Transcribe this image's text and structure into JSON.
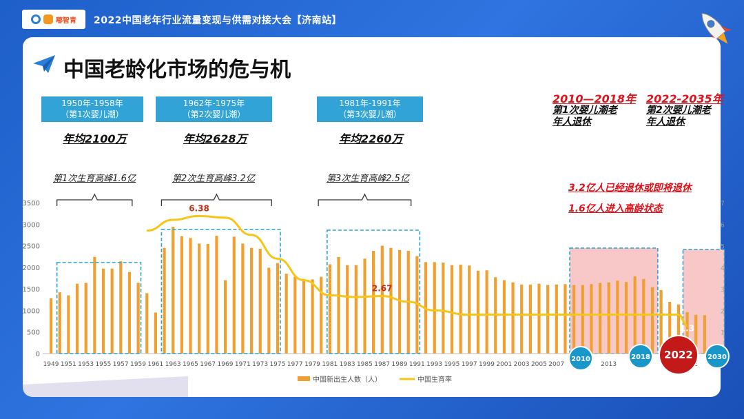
{
  "header": {
    "logo_text": "嘟智青",
    "conference_title": "2022中国老年行业流量变现与供需对接大会【济南站】"
  },
  "page_title": "中国老龄化市场的危与机",
  "eras": [
    {
      "range": "1950年-1958年",
      "label": "（第1次婴儿潮）",
      "avg": "年均2100万",
      "peak": "第1次生育高峰1.6亿"
    },
    {
      "range": "1962年-1975年",
      "label": "（第2次婴儿潮）",
      "avg": "年均2628万",
      "peak": "第2次生育高峰3.2亿"
    },
    {
      "range": "1981年-1991年",
      "label": "（第3次婴儿潮）",
      "avg": "年均2260万",
      "peak": "第3次生育高峰2.5亿"
    }
  ],
  "retirement": [
    {
      "years": "2010—2018年",
      "line1": "第1次婴儿潮老",
      "line2": "年人退休"
    },
    {
      "years": "2022-2035年",
      "line1": "第2次婴儿潮老",
      "line2": "年人退休"
    }
  ],
  "notes": [
    "3.2亿人已经退休或即将退休",
    "1.6亿人进入高龄状态"
  ],
  "year_badges": [
    "2010",
    "2018",
    "2022",
    "2030"
  ],
  "colors": {
    "bar": "#f0a030",
    "line": "#f7c518",
    "box": "#2a9fd0",
    "shade": "#f8c8c8",
    "red": "#e0121b",
    "badge": "#1a97c9",
    "badge_main": "#c31919"
  },
  "chart_data": {
    "type": "bar",
    "x": [
      1949,
      1950,
      1951,
      1952,
      1953,
      1954,
      1955,
      1956,
      1957,
      1958,
      1959,
      1960,
      1961,
      1962,
      1963,
      1964,
      1965,
      1966,
      1967,
      1968,
      1969,
      1970,
      1971,
      1972,
      1973,
      1974,
      1975,
      1976,
      1977,
      1978,
      1979,
      1980,
      1981,
      1982,
      1983,
      1984,
      1985,
      1986,
      1987,
      1988,
      1989,
      1990,
      1991,
      1992,
      1993,
      1994,
      1995,
      1996,
      1997,
      1998,
      1999,
      2000,
      2001,
      2002,
      2003,
      2004,
      2005,
      2006,
      2007,
      2008,
      2009,
      2010,
      2011,
      2012,
      2013,
      2014,
      2015,
      2016,
      2017,
      2018,
      2019,
      2020,
      2021,
      2022,
      2023,
      2024
    ],
    "x_tick_labels": [
      "1949",
      "1951",
      "1953",
      "1955",
      "1957",
      "1959",
      "1961",
      "1963",
      "1965",
      "1967",
      "1969",
      "1971",
      "1973",
      "1975",
      "1977",
      "1979",
      "1981",
      "1983",
      "1985",
      "1987",
      "1989",
      "1991",
      "1993",
      "1995",
      "1997",
      "1999",
      "2001",
      "2003",
      "2005",
      "2007",
      "2013",
      "2"
    ],
    "series": [
      {
        "name": "中国新出生人数（人）",
        "type": "bar",
        "axis": "left",
        "values": [
          1280,
          1420,
          1350,
          1620,
          1640,
          2240,
          1970,
          1970,
          2140,
          1890,
          1640,
          1400,
          950,
          2450,
          2940,
          2720,
          2680,
          2550,
          2540,
          2730,
          1700,
          2710,
          2550,
          2450,
          2430,
          1990,
          2100,
          1850,
          1780,
          1730,
          1720,
          1780,
          2070,
          2240,
          2050,
          2050,
          2200,
          2380,
          2500,
          2450,
          2400,
          2380,
          2260,
          2120,
          2120,
          2110,
          2050,
          2060,
          2040,
          1920,
          1930,
          1770,
          1700,
          1650,
          1600,
          1600,
          1620,
          1590,
          1600,
          1610,
          1590,
          1590,
          1610,
          1640,
          1650,
          1690,
          1660,
          1790,
          1730,
          1540,
          1470,
          1200,
          1140,
          960,
          900,
          890
        ]
      },
      {
        "name": "中国生育率",
        "type": "line",
        "axis": "right",
        "x": [
          1960,
          1963,
          1966,
          1969,
          1972,
          1975,
          1978,
          1981,
          1984,
          1987,
          1990,
          1993,
          1997,
          2000,
          2003,
          2006,
          2009,
          2012,
          2015,
          2018,
          2021,
          2022
        ],
        "values": [
          5.7,
          6.2,
          6.38,
          6.3,
          5.5,
          4.4,
          3.4,
          2.7,
          2.62,
          2.67,
          2.4,
          2.0,
          1.8,
          1.8,
          1.8,
          1.8,
          1.8,
          1.8,
          1.8,
          1.8,
          1.8,
          1.3
        ]
      }
    ],
    "data_labels": [
      {
        "text": "6.38",
        "x": 1966,
        "value": 6.38
      },
      {
        "text": "2.67",
        "x": 1987,
        "value": 2.67
      },
      {
        "text": "1.3",
        "x": 2022,
        "value": 1.3
      }
    ],
    "y_ticks": [
      "0",
      "500",
      "1000",
      "1500",
      "2000",
      "2500",
      "3000",
      "3500"
    ],
    "y_right_ticks": [
      "1",
      "2",
      "3",
      "4",
      "5",
      "6",
      "7"
    ],
    "ylim": [
      0,
      3500
    ],
    "y_right_lim": [
      0,
      7
    ],
    "legend_position": "bottom",
    "grid": false
  }
}
